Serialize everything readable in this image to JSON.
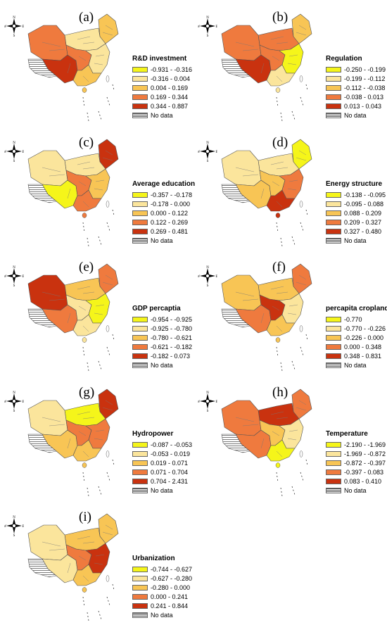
{
  "compass": {
    "n": "N",
    "s": "S",
    "e": "E",
    "w": "W"
  },
  "nodata_label": "No data",
  "panels": [
    {
      "letter": "(a)",
      "title": "R&D investment",
      "ranges": [
        "-0.931 - -0.316",
        "-0.316 - 0.004",
        "0.004 - 0.169",
        "0.169 - 0.344",
        "0.344 - 0.887"
      ]
    },
    {
      "letter": "(b)",
      "title": "Regulation",
      "ranges": [
        "-0.250 - -0.199",
        "-0.199 - -0.112",
        "-0.112 - -0.038",
        "-0.038 - 0.013",
        "0.013 - 0.043"
      ]
    },
    {
      "letter": "(c)",
      "title": "Average education",
      "ranges": [
        "-0.357 - -0.178",
        "-0.178 - 0.000",
        "0.000 - 0.122",
        "0.122 - 0.269",
        "0.269 - 0.481"
      ]
    },
    {
      "letter": "(d)",
      "title": "Energy structure",
      "ranges": [
        "-0.138 - -0.095",
        "-0.095 - 0.088",
        "0.088 - 0.209",
        "0.209 - 0.327",
        "0.327 - 0.480"
      ]
    },
    {
      "letter": "(e)",
      "title": "GDP  percaptia",
      "ranges": [
        "-0.954 - -0.925",
        "-0.925 - -0.780",
        "-0.780 - -0.621",
        "-0.621 - -0.182",
        "-0.182 - 0.073"
      ]
    },
    {
      "letter": "(f)",
      "title": "percapita cropland",
      "ranges": [
        "-0.770",
        "-0.770 - -0.226",
        "-0.226 - 0.000",
        "0.000 - 0.348",
        "0.348 - 0.831"
      ]
    },
    {
      "letter": "(g)",
      "title": "Hydropower",
      "ranges": [
        "-0.087 - -0.053",
        "-0.053 - 0.019",
        "0.019 - 0.071",
        "0.071 - 0.704",
        "0.704 - 2.431"
      ]
    },
    {
      "letter": "(h)",
      "title": "Temperature",
      "ranges": [
        "-2.190 - -1.969",
        "-1.969 - -0.872",
        "-0.872 - -0.397",
        "-0.397 - 0.083",
        "0.083 - 0.410"
      ]
    },
    {
      "letter": "(i)",
      "title": "Urbanization",
      "ranges": [
        "-0.744 - -0.627",
        "-0.627 - -0.280",
        "-0.280 - 0.000",
        "0.000 - 0.241",
        "0.241 - 0.844"
      ]
    }
  ],
  "class_colors": [
    "#f5f51a",
    "#fbe59c",
    "#f8c555",
    "#ef7a3e",
    "#c9320f"
  ],
  "map_colors": [
    {
      "northeast": 2,
      "north": 1,
      "west": 3,
      "southwest": 4,
      "central": 3,
      "east": 1,
      "south": 2
    },
    {
      "northeast": 2,
      "north": 3,
      "west": 3,
      "southwest": 4,
      "central": 3,
      "east": 0,
      "south": 1
    },
    {
      "northeast": 4,
      "north": 1,
      "west": 1,
      "southwest": 0,
      "central": 3,
      "east": 2,
      "south": 3
    },
    {
      "northeast": 0,
      "north": 1,
      "west": 1,
      "southwest": 2,
      "central": 2,
      "east": 3,
      "south": 4
    },
    {
      "northeast": 3,
      "north": 2,
      "west": 4,
      "southwest": 3,
      "central": 1,
      "east": 0,
      "south": 1
    },
    {
      "northeast": 3,
      "north": 2,
      "west": 2,
      "southwest": 3,
      "central": 4,
      "east": 1,
      "south": 2
    },
    {
      "northeast": 4,
      "north": 0,
      "west": 1,
      "southwest": 2,
      "central": 3,
      "east": 3,
      "south": 2
    },
    {
      "northeast": 3,
      "north": 4,
      "west": 3,
      "southwest": 3,
      "central": 2,
      "east": 1,
      "south": 0
    },
    {
      "northeast": 2,
      "north": 2,
      "west": 1,
      "southwest": 1,
      "central": 3,
      "east": 4,
      "south": 2
    }
  ]
}
